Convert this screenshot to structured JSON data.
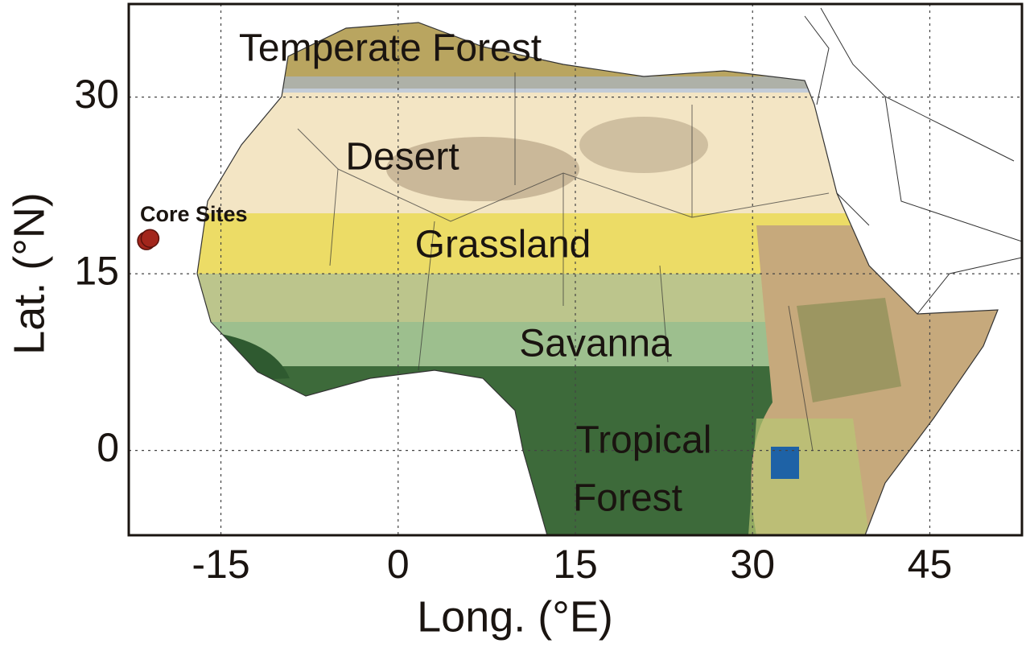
{
  "map": {
    "x_label": "Long. (°E)",
    "y_label": "Lat. (°N)",
    "xlim": [
      -22.8,
      52.8
    ],
    "ylim": [
      -7.2,
      37.9
    ],
    "xticks": [
      -15,
      0,
      15,
      30,
      45
    ],
    "yticks": [
      0,
      15,
      30
    ],
    "grid": true,
    "regions": [
      {
        "label": "Temperate Forest"
      },
      {
        "label": "Desert"
      },
      {
        "label": "Grassland"
      },
      {
        "label": "Savanna"
      },
      {
        "label": "Tropical"
      },
      {
        "label": "Forest"
      }
    ],
    "core_sites": {
      "label": "Core Sites",
      "color": "#a3261c",
      "points": [
        {
          "lon": -21.3,
          "lat": 17.8
        },
        {
          "lon": -21.0,
          "lat": 18.0
        }
      ]
    }
  }
}
